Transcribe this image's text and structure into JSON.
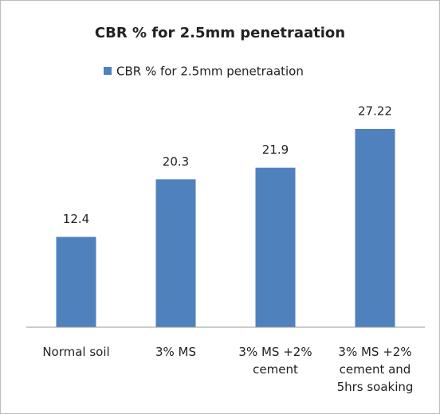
{
  "chart_data": {
    "type": "bar",
    "title": "CBR % for 2.5mm penetraation",
    "categories": [
      "Normal soil",
      "3% MS",
      "3% MS +2% cement",
      "3% MS +2% cement and 5hrs soaking"
    ],
    "series": [
      {
        "name": "CBR % for 2.5mm penetraation",
        "color": "#4f81bd",
        "values": [
          12.4,
          20.3,
          21.9,
          27.22
        ]
      }
    ],
    "legend": "top"
  }
}
